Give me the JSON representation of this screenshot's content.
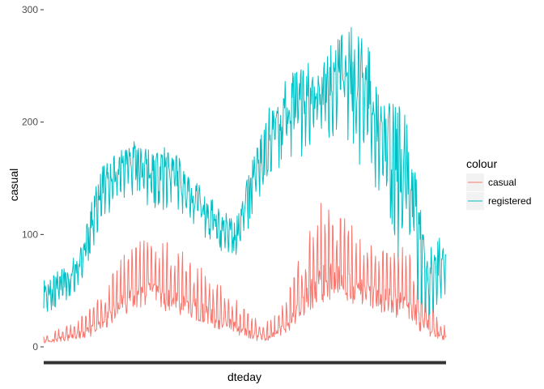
{
  "chart_data": {
    "type": "line",
    "xlabel": "dteday",
    "ylabel": "casual",
    "ylim": [
      0,
      300
    ],
    "yticks": [
      0,
      100,
      200,
      300
    ],
    "ytick_labels": [
      "0",
      "100",
      "200",
      "300"
    ],
    "grid": false,
    "legend": {
      "title": "colour",
      "placement": "right",
      "entries": [
        {
          "label": "casual",
          "color": "#F8766D"
        },
        {
          "label": "registered",
          "color": "#00BFC4"
        }
      ]
    },
    "x_points": 731,
    "series": [
      {
        "name": "casual",
        "color": "#F8766D",
        "envelope": {
          "upper": [
            12,
            14,
            18,
            22,
            28,
            36,
            48,
            62,
            78,
            88,
            95,
            100,
            98,
            92,
            88,
            82,
            76,
            68,
            60,
            52,
            44,
            34,
            26,
            20,
            28,
            40,
            60,
            88,
            110,
            130,
            128,
            120,
            110,
            100,
            95,
            90,
            92,
            95,
            90,
            80,
            60,
            30,
            18
          ],
          "lower": [
            3,
            3,
            4,
            5,
            6,
            8,
            12,
            18,
            24,
            28,
            30,
            30,
            29,
            27,
            25,
            22,
            20,
            17,
            14,
            12,
            9,
            7,
            5,
            4,
            6,
            9,
            14,
            20,
            28,
            34,
            38,
            38,
            36,
            34,
            32,
            30,
            26,
            22,
            18,
            12,
            8,
            4,
            3
          ]
        }
      },
      {
        "name": "registered",
        "color": "#00BFC4",
        "envelope": {
          "upper": [
            60,
            65,
            70,
            78,
            95,
            130,
            160,
            172,
            180,
            185,
            182,
            175,
            178,
            180,
            172,
            160,
            150,
            140,
            130,
            120,
            110,
            145,
            175,
            200,
            225,
            240,
            248,
            252,
            256,
            262,
            270,
            280,
            288,
            285,
            270,
            245,
            225,
            215,
            205,
            150,
            80,
            100,
            95
          ],
          "lower": [
            28,
            30,
            35,
            45,
            55,
            80,
            110,
            120,
            125,
            128,
            125,
            120,
            118,
            120,
            115,
            108,
            100,
            92,
            85,
            80,
            78,
            95,
            120,
            140,
            150,
            155,
            160,
            165,
            170,
            175,
            178,
            180,
            170,
            155,
            140,
            125,
            100,
            70,
            60,
            40,
            20,
            30,
            45
          ]
        }
      }
    ]
  }
}
